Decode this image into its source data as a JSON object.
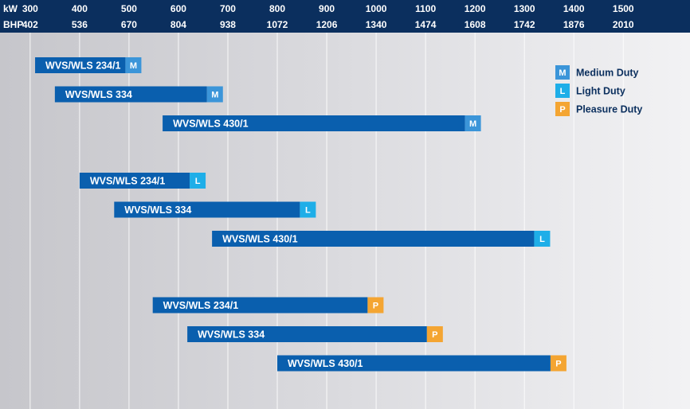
{
  "chart_data": {
    "type": "bar",
    "orientation": "horizontal-range",
    "title": "",
    "axes": {
      "primary": {
        "unit_label": "kW",
        "ticks": [
          300,
          400,
          500,
          600,
          700,
          800,
          900,
          1000,
          1100,
          1200,
          1300,
          1400,
          1500
        ]
      },
      "secondary": {
        "unit_label": "BHP",
        "ticks": [
          402,
          536,
          670,
          804,
          938,
          1072,
          1206,
          1340,
          1474,
          1608,
          1742,
          1876,
          2010
        ]
      },
      "xlim_kw": [
        239,
        1635
      ],
      "grid": true
    },
    "series": [
      {
        "name": "Medium Duty",
        "letter": "M",
        "color": "#3b95d9",
        "bars": [
          {
            "label": "WVS/WLS 234/1",
            "start_kw": 310,
            "end_kw": 525
          },
          {
            "label": "WVS/WLS 334",
            "start_kw": 350,
            "end_kw": 690
          },
          {
            "label": "WVS/WLS 430/1",
            "start_kw": 568,
            "end_kw": 1212
          }
        ]
      },
      {
        "name": "Light Duty",
        "letter": "L",
        "color": "#1eaee8",
        "bars": [
          {
            "label": "WVS/WLS 234/1",
            "start_kw": 400,
            "end_kw": 655
          },
          {
            "label": "WVS/WLS 334",
            "start_kw": 470,
            "end_kw": 878
          },
          {
            "label": "WVS/WLS 430/1",
            "start_kw": 668,
            "end_kw": 1352
          }
        ]
      },
      {
        "name": "Pleasure Duty",
        "letter": "P",
        "color": "#f4a532",
        "bars": [
          {
            "label": "WVS/WLS 234/1",
            "start_kw": 548,
            "end_kw": 1015
          },
          {
            "label": "WVS/WLS 334",
            "start_kw": 618,
            "end_kw": 1135
          },
          {
            "label": "WVS/WLS 430/1",
            "start_kw": 800,
            "end_kw": 1385
          }
        ]
      }
    ],
    "legend": {
      "position": "top-right"
    }
  },
  "colors": {
    "header_background": "#0b2f5e",
    "bar_fill": "#0a5fae",
    "background_light": "#ebebee",
    "background_dark": "#c7c7cc",
    "legend_text": "#0b2f5e"
  }
}
